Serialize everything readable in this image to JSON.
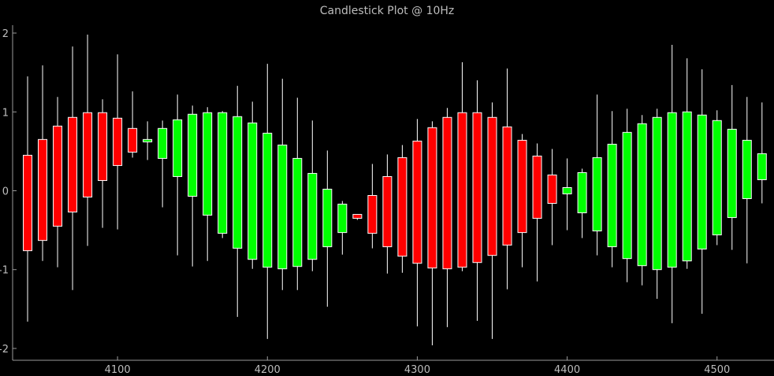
{
  "chart_data": {
    "type": "candlestick",
    "title": "Candlestick Plot @ 10Hz",
    "xlabel": "",
    "ylabel": "",
    "xlim": [
      4030,
      4538
    ],
    "ylim": [
      -2.15,
      2.1
    ],
    "x_ticks": [
      4100,
      4200,
      4300,
      4400,
      4500
    ],
    "y_ticks": [
      -2,
      -1,
      0,
      1,
      2
    ],
    "colors": {
      "up": "#00ff00",
      "down": "#ff0000",
      "wick": "#ffffff",
      "axis": "#9a9a9a",
      "background": "#000000"
    },
    "candles": [
      {
        "x": 4040,
        "open": 0.45,
        "close": -0.76,
        "high": 1.45,
        "low": -1.66
      },
      {
        "x": 4050,
        "open": 0.65,
        "close": -0.63,
        "high": 1.59,
        "low": -0.89
      },
      {
        "x": 4060,
        "open": 0.82,
        "close": -0.45,
        "high": 1.19,
        "low": -0.97
      },
      {
        "x": 4070,
        "open": 0.93,
        "close": -0.27,
        "high": 1.83,
        "low": -1.26
      },
      {
        "x": 4080,
        "open": 0.99,
        "close": -0.08,
        "high": 1.98,
        "low": -0.7
      },
      {
        "x": 4090,
        "open": 0.99,
        "close": 0.13,
        "high": 1.16,
        "low": -0.47
      },
      {
        "x": 4100,
        "open": 0.92,
        "close": 0.32,
        "high": 1.73,
        "low": -0.49
      },
      {
        "x": 4110,
        "open": 0.79,
        "close": 0.49,
        "high": 1.26,
        "low": 0.42
      },
      {
        "x": 4120,
        "open": 0.62,
        "close": 0.65,
        "high": 0.88,
        "low": 0.39
      },
      {
        "x": 4130,
        "open": 0.41,
        "close": 0.79,
        "high": 0.89,
        "low": -0.21
      },
      {
        "x": 4140,
        "open": 0.18,
        "close": 0.9,
        "high": 1.22,
        "low": -0.82
      },
      {
        "x": 4150,
        "open": -0.07,
        "close": 0.97,
        "high": 1.08,
        "low": -0.96
      },
      {
        "x": 4160,
        "open": -0.31,
        "close": 0.99,
        "high": 1.06,
        "low": -0.89
      },
      {
        "x": 4170,
        "open": -0.54,
        "close": 0.99,
        "high": 1.01,
        "low": -0.6
      },
      {
        "x": 4180,
        "open": -0.73,
        "close": 0.94,
        "high": 1.33,
        "low": -1.6
      },
      {
        "x": 4190,
        "open": -0.87,
        "close": 0.86,
        "high": 1.13,
        "low": -0.99
      },
      {
        "x": 4200,
        "open": -0.97,
        "close": 0.73,
        "high": 1.61,
        "low": -1.88
      },
      {
        "x": 4210,
        "open": -0.99,
        "close": 0.58,
        "high": 1.42,
        "low": -1.26
      },
      {
        "x": 4220,
        "open": -0.96,
        "close": 0.41,
        "high": 1.18,
        "low": -1.26
      },
      {
        "x": 4230,
        "open": -0.87,
        "close": 0.22,
        "high": 0.89,
        "low": -1.02
      },
      {
        "x": 4240,
        "open": -0.71,
        "close": 0.02,
        "high": 0.51,
        "low": -1.47
      },
      {
        "x": 4250,
        "open": -0.53,
        "close": -0.17,
        "high": -0.13,
        "low": -0.81
      },
      {
        "x": 4260,
        "open": -0.3,
        "close": -0.35,
        "high": -0.3,
        "low": -0.37
      },
      {
        "x": 4270,
        "open": -0.06,
        "close": -0.54,
        "high": 0.34,
        "low": -0.73
      },
      {
        "x": 4280,
        "open": 0.18,
        "close": -0.71,
        "high": 0.46,
        "low": -1.05
      },
      {
        "x": 4290,
        "open": 0.42,
        "close": -0.83,
        "high": 0.58,
        "low": -1.04
      },
      {
        "x": 4300,
        "open": 0.63,
        "close": -0.92,
        "high": 0.91,
        "low": -1.72
      },
      {
        "x": 4310,
        "open": 0.8,
        "close": -0.98,
        "high": 0.88,
        "low": -1.96
      },
      {
        "x": 4320,
        "open": 0.93,
        "close": -0.99,
        "high": 1.05,
        "low": -1.73
      },
      {
        "x": 4330,
        "open": 0.99,
        "close": -0.97,
        "high": 1.63,
        "low": -1.02
      },
      {
        "x": 4340,
        "open": 0.99,
        "close": -0.91,
        "high": 1.4,
        "low": -1.65
      },
      {
        "x": 4350,
        "open": 0.93,
        "close": -0.82,
        "high": 1.12,
        "low": -1.88
      },
      {
        "x": 4360,
        "open": 0.81,
        "close": -0.69,
        "high": 1.55,
        "low": -1.25
      },
      {
        "x": 4370,
        "open": 0.64,
        "close": -0.53,
        "high": 0.72,
        "low": -0.97
      },
      {
        "x": 4380,
        "open": 0.44,
        "close": -0.35,
        "high": 0.6,
        "low": -1.15
      },
      {
        "x": 4390,
        "open": 0.2,
        "close": -0.16,
        "high": 0.53,
        "low": -0.69
      },
      {
        "x": 4400,
        "open": -0.04,
        "close": 0.04,
        "high": 0.41,
        "low": -0.5
      },
      {
        "x": 4410,
        "open": -0.28,
        "close": 0.23,
        "high": 0.28,
        "low": -0.6
      },
      {
        "x": 4420,
        "open": -0.51,
        "close": 0.42,
        "high": 1.22,
        "low": -0.82
      },
      {
        "x": 4430,
        "open": -0.71,
        "close": 0.59,
        "high": 1.01,
        "low": -0.97
      },
      {
        "x": 4440,
        "open": -0.86,
        "close": 0.74,
        "high": 1.04,
        "low": -1.16
      },
      {
        "x": 4450,
        "open": -0.95,
        "close": 0.85,
        "high": 0.96,
        "low": -1.2
      },
      {
        "x": 4460,
        "open": -1.0,
        "close": 0.93,
        "high": 1.04,
        "low": -1.37
      },
      {
        "x": 4470,
        "open": -0.97,
        "close": 0.99,
        "high": 1.85,
        "low": -1.68
      },
      {
        "x": 4480,
        "open": -0.89,
        "close": 1.0,
        "high": 1.68,
        "low": -0.99
      },
      {
        "x": 4490,
        "open": -0.74,
        "close": 0.96,
        "high": 1.54,
        "low": -1.56
      },
      {
        "x": 4500,
        "open": -0.56,
        "close": 0.89,
        "high": 1.02,
        "low": -0.69
      },
      {
        "x": 4510,
        "open": -0.34,
        "close": 0.78,
        "high": 1.34,
        "low": -0.75
      },
      {
        "x": 4520,
        "open": -0.1,
        "close": 0.64,
        "high": 1.19,
        "low": -0.92
      },
      {
        "x": 4530,
        "open": 0.14,
        "close": 0.47,
        "high": 1.12,
        "low": -0.16
      }
    ]
  }
}
